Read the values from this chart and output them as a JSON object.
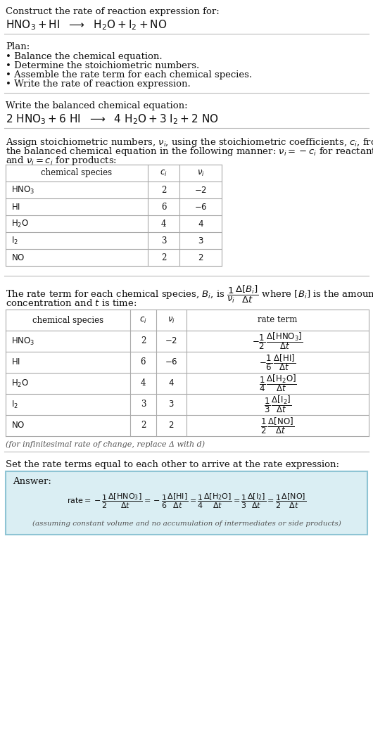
{
  "bg_color": "#ffffff",
  "text_color": "#111111",
  "gray_text": "#555555",
  "table_border": "#aaaaaa",
  "answer_bg": "#daeef3",
  "answer_border": "#8ec4d4",
  "title_text": "Construct the rate of reaction expression for:",
  "plan_header": "Plan:",
  "plan_items": [
    "• Balance the chemical equation.",
    "• Determine the stoichiometric numbers.",
    "• Assemble the rate term for each chemical species.",
    "• Write the rate of reaction expression."
  ],
  "balanced_header": "Write the balanced chemical equation:",
  "assign_text1": "Assign stoichiometric numbers, ν",
  "assign_text2": "the balanced chemical equation in the following manner: ν",
  "assign_text3": "and ν",
  "rate_text1": "The rate term for each chemical species, B",
  "rate_text2": "concentration and t is time:",
  "infinitesimal_note": "(for infinitesimal rate of change, replace Δ with d)",
  "set_equal_text": "Set the rate terms equal to each other to arrive at the rate expression:",
  "answer_label": "Answer:",
  "assuming_note": "(assuming constant volume and no accumulation of intermediates or side products)"
}
